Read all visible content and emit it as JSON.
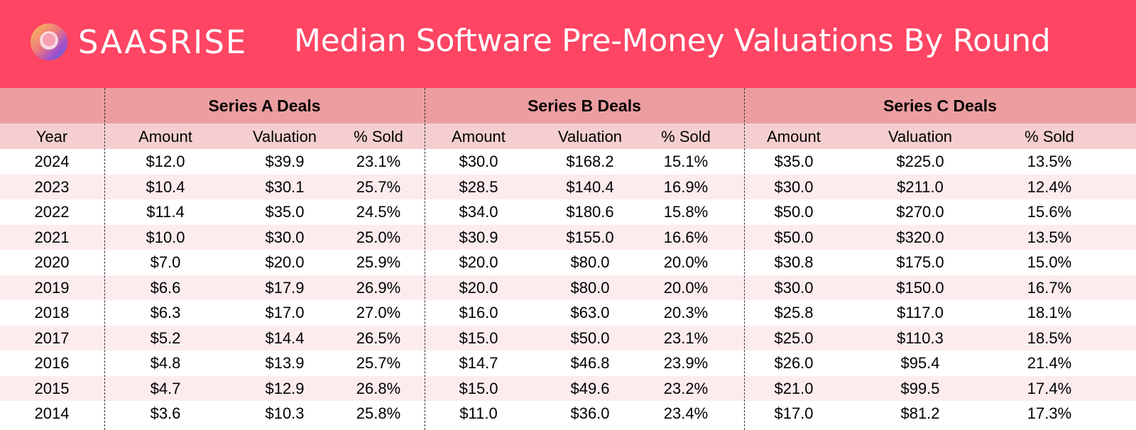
{
  "brand": {
    "name": "SAASRISE",
    "logo_colors": [
      "#f7a45a",
      "#f06a8a",
      "#7b4fd8",
      "#3c7bd6"
    ]
  },
  "title": "Median Software Pre-Money Valuations By Round",
  "colors": {
    "banner": "#fe4563",
    "group_header": "#ec9d9f",
    "column_header": "#f5cfd0",
    "row_alt": "#fdecee"
  },
  "chart_data": {
    "type": "table",
    "groups": [
      "Series A Deals",
      "Series B Deals",
      "Series C Deals"
    ],
    "columns": [
      "Year",
      "Amount",
      "Valuation",
      "% Sold",
      "Amount",
      "Valuation",
      "% Sold",
      "Amount",
      "Valuation",
      "% Sold"
    ],
    "rows": [
      [
        "2024",
        "$12.0",
        "$39.9",
        "23.1%",
        "$30.0",
        "$168.2",
        "15.1%",
        "$35.0",
        "$225.0",
        "13.5%"
      ],
      [
        "2023",
        "$10.4",
        "$30.1",
        "25.7%",
        "$28.5",
        "$140.4",
        "16.9%",
        "$30.0",
        "$211.0",
        "12.4%"
      ],
      [
        "2022",
        "$11.4",
        "$35.0",
        "24.5%",
        "$34.0",
        "$180.6",
        "15.8%",
        "$50.0",
        "$270.0",
        "15.6%"
      ],
      [
        "2021",
        "$10.0",
        "$30.0",
        "25.0%",
        "$30.9",
        "$155.0",
        "16.6%",
        "$50.0",
        "$320.0",
        "13.5%"
      ],
      [
        "2020",
        "$7.0",
        "$20.0",
        "25.9%",
        "$20.0",
        "$80.0",
        "20.0%",
        "$30.8",
        "$175.0",
        "15.0%"
      ],
      [
        "2019",
        "$6.6",
        "$17.9",
        "26.9%",
        "$20.0",
        "$80.0",
        "20.0%",
        "$30.0",
        "$150.0",
        "16.7%"
      ],
      [
        "2018",
        "$6.3",
        "$17.0",
        "27.0%",
        "$16.0",
        "$63.0",
        "20.3%",
        "$25.8",
        "$117.0",
        "18.1%"
      ],
      [
        "2017",
        "$5.2",
        "$14.4",
        "26.5%",
        "$15.0",
        "$50.0",
        "23.1%",
        "$25.0",
        "$110.3",
        "18.5%"
      ],
      [
        "2016",
        "$4.8",
        "$13.9",
        "25.7%",
        "$14.7",
        "$46.8",
        "23.9%",
        "$26.0",
        "$95.4",
        "21.4%"
      ],
      [
        "2015",
        "$4.7",
        "$12.9",
        "26.8%",
        "$15.0",
        "$49.6",
        "23.2%",
        "$21.0",
        "$99.5",
        "17.4%"
      ],
      [
        "2014",
        "$3.6",
        "$10.3",
        "25.8%",
        "$11.0",
        "$36.0",
        "23.4%",
        "$17.0",
        "$81.2",
        "17.3%"
      ]
    ]
  }
}
